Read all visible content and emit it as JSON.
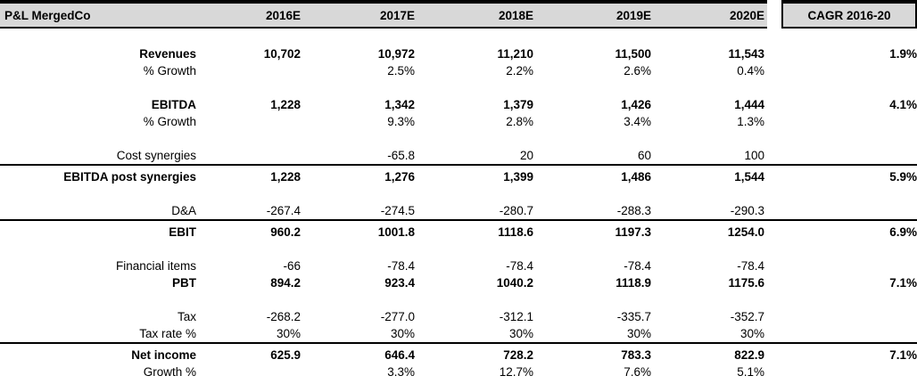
{
  "colors": {
    "header_bg": "#d8d8d8",
    "border": "#000000",
    "text": "#000000"
  },
  "table": {
    "title": "P&L MergedCo",
    "columns": [
      "2016E",
      "2017E",
      "2018E",
      "2019E",
      "2020E",
      "CAGR 2016-20"
    ],
    "rows": [
      {
        "label": "Revenues",
        "bold": true,
        "spacer_before": true,
        "line_above": false,
        "values": [
          "10,702",
          "10,972",
          "11,210",
          "11,500",
          "11,543"
        ],
        "cagr": "1.9%"
      },
      {
        "label": "% Growth",
        "bold": false,
        "spacer_before": false,
        "line_above": false,
        "values": [
          "",
          "2.5%",
          "2.2%",
          "2.6%",
          "0.4%"
        ],
        "cagr": ""
      },
      {
        "label": "EBITDA",
        "bold": true,
        "spacer_before": true,
        "line_above": false,
        "values": [
          "1,228",
          "1,342",
          "1,379",
          "1,426",
          "1,444"
        ],
        "cagr": "4.1%"
      },
      {
        "label": "% Growth",
        "bold": false,
        "spacer_before": false,
        "line_above": false,
        "values": [
          "",
          "9.3%",
          "2.8%",
          "3.4%",
          "1.3%"
        ],
        "cagr": ""
      },
      {
        "label": "Cost synergies",
        "bold": false,
        "spacer_before": true,
        "line_above": false,
        "values": [
          "",
          "-65.8",
          "20",
          "60",
          "100"
        ],
        "cagr": ""
      },
      {
        "label": "EBITDA post synergies",
        "bold": true,
        "spacer_before": false,
        "line_above": true,
        "values": [
          "1,228",
          "1,276",
          "1,399",
          "1,486",
          "1,544"
        ],
        "cagr": "5.9%"
      },
      {
        "label": "D&A",
        "bold": false,
        "spacer_before": true,
        "line_above": false,
        "values": [
          "-267.4",
          "-274.5",
          "-280.7",
          "-288.3",
          "-290.3"
        ],
        "cagr": ""
      },
      {
        "label": "EBIT",
        "bold": true,
        "spacer_before": false,
        "line_above": true,
        "values": [
          "960.2",
          "1001.8",
          "1118.6",
          "1197.3",
          "1254.0"
        ],
        "cagr": "6.9%"
      },
      {
        "label": "Financial items",
        "bold": false,
        "spacer_before": true,
        "line_above": false,
        "values": [
          "-66",
          "-78.4",
          "-78.4",
          "-78.4",
          "-78.4"
        ],
        "cagr": ""
      },
      {
        "label": "PBT",
        "bold": true,
        "spacer_before": false,
        "line_above": false,
        "values": [
          "894.2",
          "923.4",
          "1040.2",
          "1118.9",
          "1175.6"
        ],
        "cagr": "7.1%"
      },
      {
        "label": "Tax",
        "bold": false,
        "spacer_before": true,
        "line_above": false,
        "values": [
          "-268.2",
          "-277.0",
          "-312.1",
          "-335.7",
          "-352.7"
        ],
        "cagr": ""
      },
      {
        "label": "Tax rate %",
        "bold": false,
        "spacer_before": false,
        "line_above": false,
        "values": [
          "30%",
          "30%",
          "30%",
          "30%",
          "30%"
        ],
        "cagr": ""
      },
      {
        "label": "Net income",
        "bold": true,
        "spacer_before": false,
        "line_above": true,
        "values": [
          "625.9",
          "646.4",
          "728.2",
          "783.3",
          "822.9"
        ],
        "cagr": "7.1%"
      },
      {
        "label": "Growth %",
        "bold": false,
        "spacer_before": false,
        "line_above": false,
        "values": [
          "",
          "3.3%",
          "12.7%",
          "7.6%",
          "5.1%"
        ],
        "cagr": ""
      }
    ]
  }
}
